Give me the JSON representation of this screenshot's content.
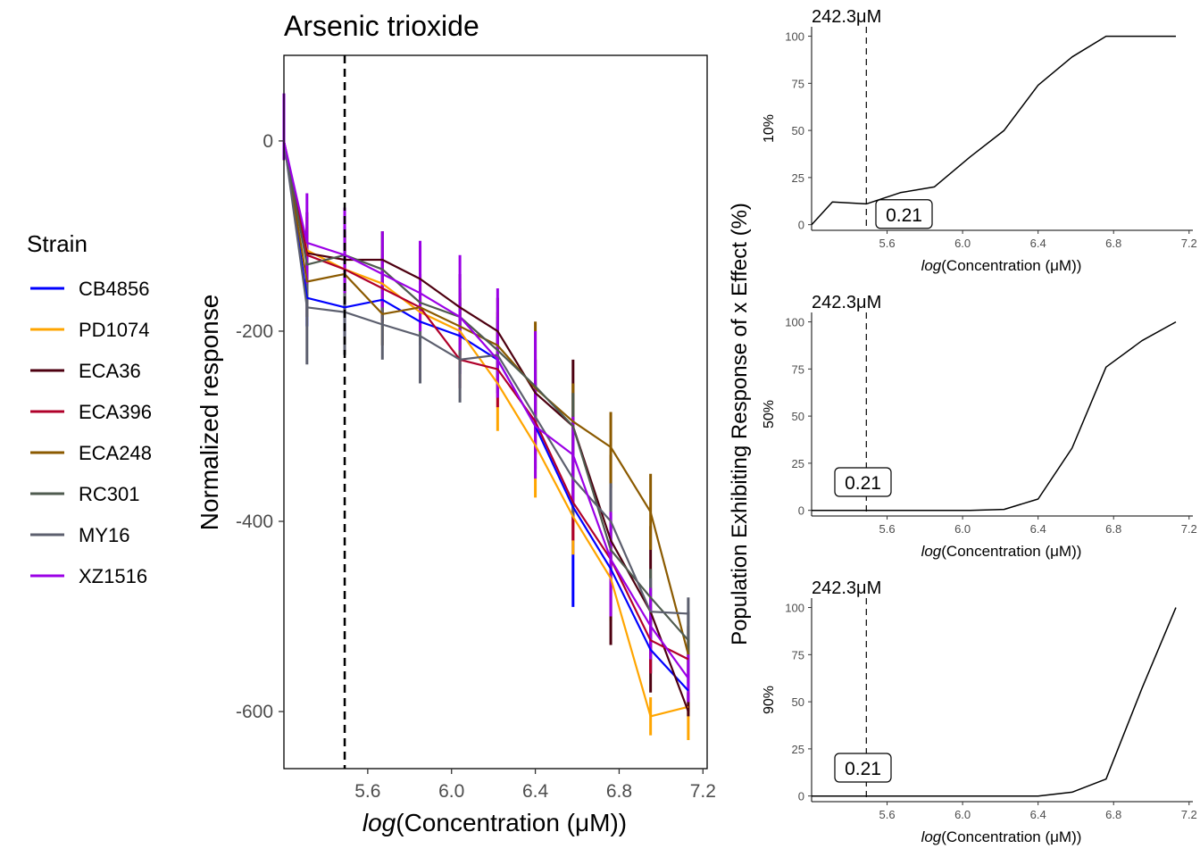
{
  "colors": {
    "CB4856": "#0000ff",
    "PD1074": "#ffa500",
    "ECA36": "#4d0010",
    "ECA396": "#b0002a",
    "ECA248": "#8b5a00",
    "RC301": "#4f5b4f",
    "MY16": "#5c5f6e",
    "XZ1516": "#9b00e6"
  },
  "legend": {
    "title": "Strain",
    "items": [
      "CB4856",
      "PD1074",
      "ECA36",
      "ECA396",
      "ECA248",
      "RC301",
      "MY16",
      "XZ1516"
    ]
  },
  "left_panel": {
    "title": "Arsenic trioxide",
    "xlabel_italic": "log",
    "xlabel_rest": "(Concentration (μM))",
    "ylabel": "Normalized response",
    "reference_line_x": 5.49
  },
  "right_shared": {
    "ylabel": "Population Exhibiting Response of x Effect (%)",
    "xlabel_italic": "log",
    "xlabel_rest": "(Concentration (μM))"
  },
  "chart_data": [
    {
      "type": "line",
      "title": "Arsenic trioxide",
      "xlabel": "log(Concentration (μM))",
      "ylabel": "Normalized response",
      "xlim": [
        5.2,
        7.22
      ],
      "ylim": [
        -660,
        90
      ],
      "xticks": [
        5.6,
        6.0,
        6.4,
        6.8,
        7.2
      ],
      "xtick_labels": [
        "5.6",
        "6.0",
        "6.4",
        "6.8",
        "7.2"
      ],
      "yticks": [
        0,
        -200,
        -400,
        -600
      ],
      "ytick_labels": [
        "0",
        "-200",
        "-400",
        "-600"
      ],
      "legend": "left",
      "grid": false,
      "x": [
        5.2,
        5.31,
        5.49,
        5.67,
        5.85,
        6.04,
        6.22,
        6.4,
        6.58,
        6.76,
        6.95,
        7.13
      ],
      "series": [
        {
          "name": "CB4856",
          "values": [
            0,
            -165,
            -175,
            -167,
            -190,
            -205,
            -230,
            -300,
            -385,
            -450,
            -535,
            -578
          ],
          "err_lo": [
            -20,
            -195,
            -205,
            -190,
            -215,
            -245,
            -265,
            -345,
            -490,
            -500,
            -560,
            -600
          ],
          "err_hi": [
            30,
            -130,
            -140,
            -140,
            -165,
            -170,
            -195,
            -255,
            -330,
            -400,
            -500,
            -555
          ]
        },
        {
          "name": "PD1074",
          "values": [
            0,
            -115,
            -135,
            -150,
            -180,
            -200,
            -255,
            -320,
            -395,
            -460,
            -605,
            -595
          ],
          "err_lo": [
            -20,
            -150,
            -175,
            -185,
            -210,
            -235,
            -305,
            -375,
            -435,
            -505,
            -625,
            -630
          ],
          "err_hi": [
            30,
            -80,
            -95,
            -110,
            -145,
            -165,
            -200,
            -270,
            -350,
            -420,
            -585,
            -575
          ]
        },
        {
          "name": "ECA36",
          "values": [
            0,
            -118,
            -125,
            -125,
            -145,
            -175,
            -200,
            -265,
            -300,
            -420,
            -495,
            -600
          ],
          "err_lo": [
            -20,
            -155,
            -160,
            -160,
            -180,
            -210,
            -235,
            -300,
            -365,
            -530,
            -580,
            -605
          ],
          "err_hi": [
            40,
            -75,
            -95,
            -95,
            -110,
            -140,
            -165,
            -230,
            -230,
            -330,
            -405,
            -580
          ]
        },
        {
          "name": "ECA396",
          "values": [
            0,
            -120,
            -135,
            -155,
            -175,
            -230,
            -240,
            -295,
            -380,
            -440,
            -525,
            -545
          ],
          "err_lo": [
            -20,
            -150,
            -170,
            -190,
            -205,
            -260,
            -280,
            -330,
            -420,
            -470,
            -560,
            -560
          ],
          "err_hi": [
            40,
            -90,
            -100,
            -120,
            -140,
            -195,
            -200,
            -260,
            -340,
            -400,
            -500,
            -525
          ]
        },
        {
          "name": "ECA248",
          "values": [
            0,
            -148,
            -140,
            -182,
            -175,
            -195,
            -215,
            -260,
            -295,
            -322,
            -390,
            -540
          ],
          "err_lo": [
            -20,
            -185,
            -180,
            -215,
            -210,
            -225,
            -250,
            -300,
            -335,
            -365,
            -430,
            -570
          ],
          "err_hi": [
            40,
            -110,
            -100,
            -150,
            -140,
            -160,
            -180,
            -190,
            -255,
            -285,
            -350,
            -510
          ]
        },
        {
          "name": "RC301",
          "values": [
            0,
            -130,
            -120,
            -135,
            -170,
            -185,
            -220,
            -258,
            -300,
            -430,
            -480,
            -525
          ],
          "err_lo": [
            -20,
            -160,
            -150,
            -165,
            -200,
            -215,
            -250,
            -290,
            -340,
            -460,
            -510,
            -555
          ],
          "err_hi": [
            40,
            -100,
            -90,
            -95,
            -140,
            -155,
            -190,
            -230,
            -265,
            -400,
            -450,
            -495
          ]
        },
        {
          "name": "MY16",
          "values": [
            0,
            -175,
            -180,
            -193,
            -205,
            -230,
            -225,
            -290,
            -355,
            -400,
            -495,
            -497
          ],
          "err_lo": [
            -20,
            -235,
            -225,
            -230,
            -255,
            -275,
            -265,
            -330,
            -395,
            -440,
            -530,
            -525
          ],
          "err_hi": [
            40,
            -120,
            -140,
            -160,
            -165,
            -190,
            -185,
            -250,
            -315,
            -360,
            -460,
            -480
          ]
        },
        {
          "name": "XZ1516",
          "values": [
            0,
            -107,
            -120,
            -140,
            -160,
            -185,
            -230,
            -300,
            -330,
            -440,
            -510,
            -565
          ],
          "err_lo": [
            -20,
            -150,
            -160,
            -175,
            -200,
            -220,
            -270,
            -355,
            -380,
            -500,
            -545,
            -590
          ],
          "err_hi": [
            50,
            -55,
            -70,
            -95,
            -105,
            -120,
            -155,
            -200,
            -290,
            -390,
            -470,
            -540
          ]
        }
      ]
    },
    {
      "type": "line",
      "title": "242.3μM",
      "ylabel": "10%",
      "xlabel": "log(Concentration (μM))",
      "xlim": [
        5.2,
        7.22
      ],
      "ylim": [
        -3,
        105
      ],
      "xticks": [
        5.6,
        6.0,
        6.4,
        6.8,
        7.2
      ],
      "xtick_labels": [
        "5.6",
        "6.0",
        "6.4",
        "6.8",
        "7.2"
      ],
      "yticks": [
        0,
        25,
        50,
        75,
        100
      ],
      "ytick_labels": [
        "0",
        "25",
        "50",
        "75",
        "100"
      ],
      "reference_line_x": 5.49,
      "annotation": "0.21",
      "annotation_y": 8,
      "x": [
        5.2,
        5.31,
        5.49,
        5.67,
        5.85,
        6.04,
        6.22,
        6.4,
        6.58,
        6.76,
        6.95,
        7.13
      ],
      "values": [
        0,
        12,
        11,
        17,
        20,
        36,
        50,
        74,
        89,
        100,
        100,
        100
      ]
    },
    {
      "type": "line",
      "title": "242.3μM",
      "ylabel": "50%",
      "xlabel": "log(Concentration (μM))",
      "xlim": [
        5.2,
        7.22
      ],
      "ylim": [
        -3,
        105
      ],
      "xticks": [
        5.6,
        6.0,
        6.4,
        6.8,
        7.2
      ],
      "xtick_labels": [
        "5.6",
        "6.0",
        "6.4",
        "6.8",
        "7.2"
      ],
      "yticks": [
        0,
        25,
        50,
        75,
        100
      ],
      "ytick_labels": [
        "0",
        "25",
        "50",
        "75",
        "100"
      ],
      "reference_line_x": 5.49,
      "annotation": "0.21",
      "annotation_y": 15,
      "x": [
        5.2,
        5.31,
        5.49,
        5.67,
        5.85,
        6.04,
        6.22,
        6.4,
        6.58,
        6.76,
        6.95,
        7.13
      ],
      "values": [
        0,
        0,
        0,
        0,
        0,
        0,
        0.5,
        6,
        33,
        76,
        90,
        100
      ]
    },
    {
      "type": "line",
      "title": "242.3μM",
      "ylabel": "90%",
      "xlabel": "log(Concentration (μM))",
      "xlim": [
        5.2,
        7.22
      ],
      "ylim": [
        -3,
        105
      ],
      "xticks": [
        5.6,
        6.0,
        6.4,
        6.8,
        7.2
      ],
      "xtick_labels": [
        "5.6",
        "6.0",
        "6.4",
        "6.8",
        "7.2"
      ],
      "yticks": [
        0,
        25,
        50,
        75,
        100
      ],
      "ytick_labels": [
        "0",
        "25",
        "50",
        "75",
        "100"
      ],
      "reference_line_x": 5.49,
      "annotation": "0.21",
      "annotation_y": 15,
      "x": [
        5.2,
        5.31,
        5.49,
        5.67,
        5.85,
        6.04,
        6.22,
        6.4,
        6.58,
        6.76,
        6.95,
        7.13
      ],
      "values": [
        0,
        0,
        0,
        0,
        0,
        0,
        0,
        0,
        2,
        9,
        57,
        100
      ]
    }
  ]
}
